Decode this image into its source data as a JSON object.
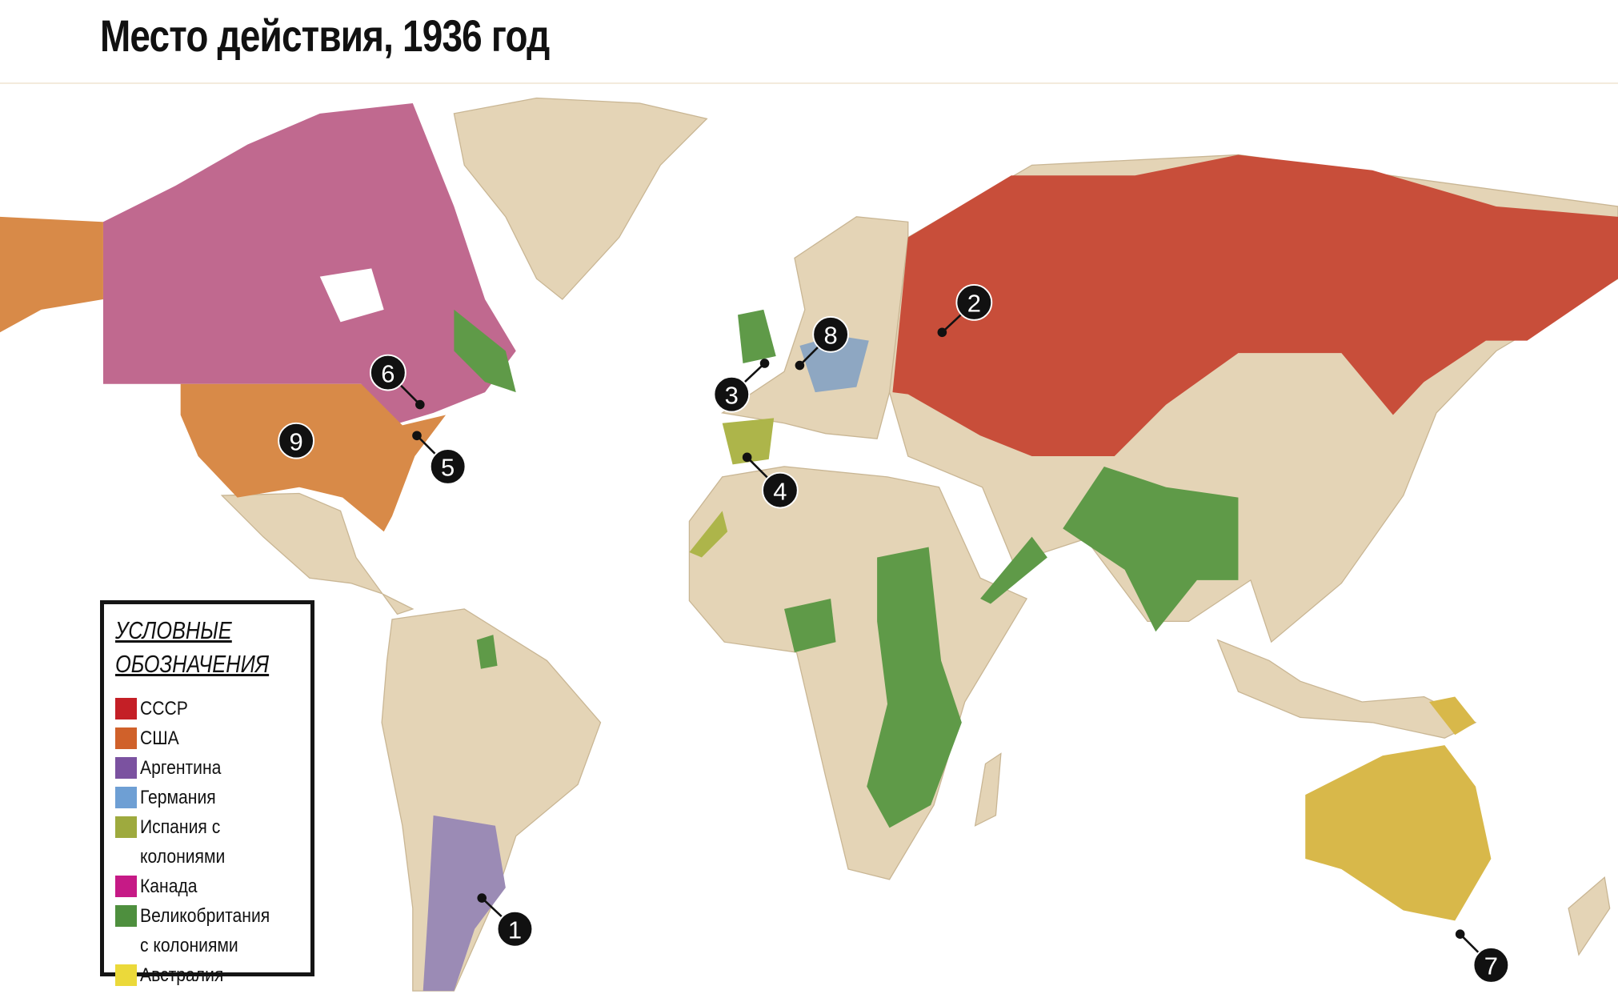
{
  "title": "Место действия, 1936 год",
  "legend": {
    "title_line1": "УСЛОВНЫЕ",
    "title_line2": "ОБОЗНАЧЕНИЯ",
    "items": [
      {
        "label": "СССР",
        "color": "#c41f26"
      },
      {
        "label": "США",
        "color": "#d0612a"
      },
      {
        "label": "Аргентина",
        "color": "#7b52a0"
      },
      {
        "label": "Германия",
        "color": "#6e9fd4"
      },
      {
        "label": "Испания с колониями",
        "color": "#9eaa3e"
      },
      {
        "label": "Канада",
        "color": "#c61a86"
      },
      {
        "label": "Великобритания с колониями",
        "color": "#4e8f3e"
      },
      {
        "label": "Австралия",
        "color": "#ebd93a"
      }
    ]
  },
  "markers": [
    {
      "label": "1",
      "place": "Аргентина"
    },
    {
      "label": "2",
      "place": "СССР"
    },
    {
      "label": "3",
      "place": "Великобритания"
    },
    {
      "label": "4",
      "place": "Испания"
    },
    {
      "label": "5",
      "place": "США"
    },
    {
      "label": "6",
      "place": "Канада"
    },
    {
      "label": "7",
      "place": "Австралия"
    },
    {
      "label": "8",
      "place": "Германия"
    },
    {
      "label": "9",
      "place": "США"
    }
  ]
}
